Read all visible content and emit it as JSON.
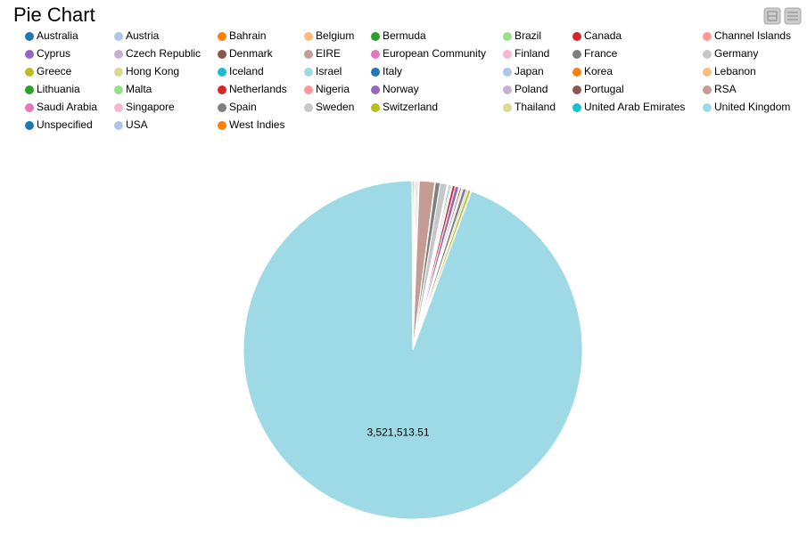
{
  "chart_data": {
    "type": "pie",
    "title": "Pie Chart",
    "categories": [
      "Australia",
      "Austria",
      "Bahrain",
      "Belgium",
      "Bermuda",
      "Brazil",
      "Canada",
      "Channel Islands",
      "Cyprus",
      "Czech Republic",
      "Denmark",
      "EIRE",
      "European Community",
      "Finland",
      "France",
      "Germany",
      "Greece",
      "Hong Kong",
      "Iceland",
      "Israel",
      "Italy",
      "Japan",
      "Korea",
      "Lebanon",
      "Lithuania",
      "Malta",
      "Netherlands",
      "Nigeria",
      "Norway",
      "Poland",
      "Portugal",
      "RSA",
      "Saudi Arabia",
      "Singapore",
      "Spain",
      "Sweden",
      "Switzerland",
      "Thailand",
      "United Arab Emirates",
      "United Kingdom",
      "Unspecified",
      "USA",
      "West Indies"
    ],
    "values": [
      4500,
      1500,
      500,
      5000,
      300,
      400,
      800,
      5500,
      2000,
      400,
      1800,
      55000,
      300,
      1500,
      17000,
      25000,
      800,
      3500,
      1200,
      1000,
      5000,
      5500,
      600,
      500,
      300,
      700,
      10000,
      300,
      13000,
      4000,
      6000,
      300,
      200,
      5000,
      12000,
      6500,
      10000,
      1200,
      1100,
      3521513.51,
      900,
      1500,
      300
    ],
    "value_labels": [
      null,
      null,
      null,
      null,
      null,
      null,
      null,
      null,
      null,
      null,
      null,
      null,
      null,
      null,
      null,
      null,
      null,
      null,
      null,
      null,
      null,
      null,
      null,
      null,
      null,
      null,
      null,
      null,
      null,
      null,
      null,
      null,
      null,
      null,
      null,
      null,
      null,
      null,
      null,
      "3,521,513.51",
      null,
      null,
      null
    ],
    "colors": [
      "#1f77b4",
      "#aec7e8",
      "#ff7f0e",
      "#ffbb78",
      "#2ca02c",
      "#98df8a",
      "#d62728",
      "#ff9896",
      "#9467bd",
      "#c5b0d5",
      "#8c564b",
      "#c49c94",
      "#e377c2",
      "#f7b6d2",
      "#7f7f7f",
      "#c7c7c7",
      "#bcbd22",
      "#dbdb8d",
      "#17becf",
      "#9edae5",
      "#1f77b4",
      "#aec7e8",
      "#ff7f0e",
      "#ffbb78",
      "#2ca02c",
      "#98df8a",
      "#d62728",
      "#ff9896",
      "#9467bd",
      "#c5b0d5",
      "#8c564b",
      "#c49c94",
      "#e377c2",
      "#f7b6d2",
      "#7f7f7f",
      "#c7c7c7",
      "#bcbd22",
      "#dbdb8d",
      "#17becf",
      "#9edae5",
      "#1f77b4",
      "#aec7e8",
      "#ff7f0e"
    ]
  }
}
